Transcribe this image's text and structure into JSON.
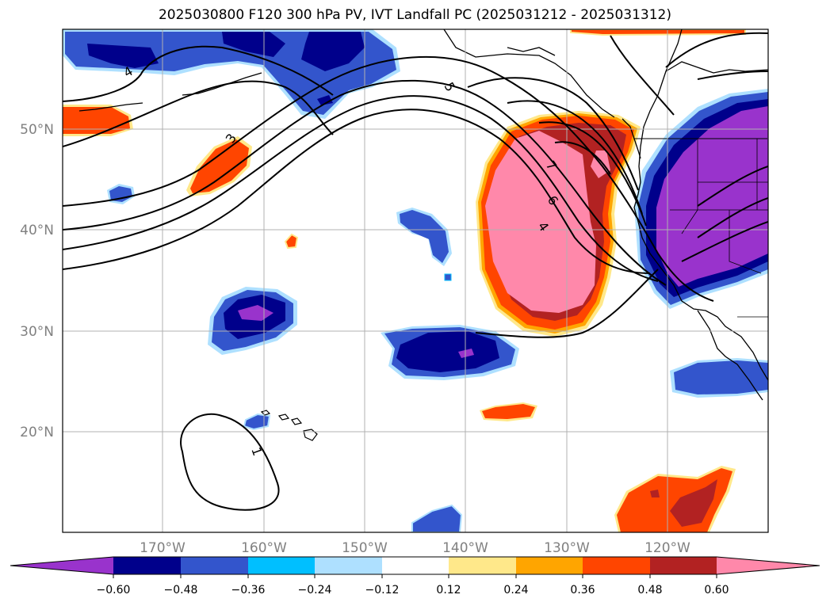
{
  "title": "2025030800 F120 300 hPa PV, IVT Landfall PC (2025031212 - 2025031312)",
  "lat_labels": [
    "50°N",
    "40°N",
    "30°N",
    "20°N"
  ],
  "lon_labels": [
    "170°W",
    "160°W",
    "150°W",
    "140°W",
    "130°W",
    "120°W"
  ],
  "colorbar": {
    "ticks": [
      "−0.60",
      "−0.48",
      "−0.36",
      "−0.24",
      "−0.12",
      "0.12",
      "0.24",
      "0.36",
      "0.48",
      "0.60"
    ],
    "colors": [
      "#9933cc",
      "#00008b",
      "#3355cc",
      "#00bfff",
      "#aee0ff",
      "#ffffff",
      "#ffe88a",
      "#ffa500",
      "#ff4500",
      "#b22222",
      "#ff88aa"
    ]
  },
  "contour_labels": [
    "1",
    "3",
    "4",
    "4",
    "5",
    "6",
    "7"
  ]
}
